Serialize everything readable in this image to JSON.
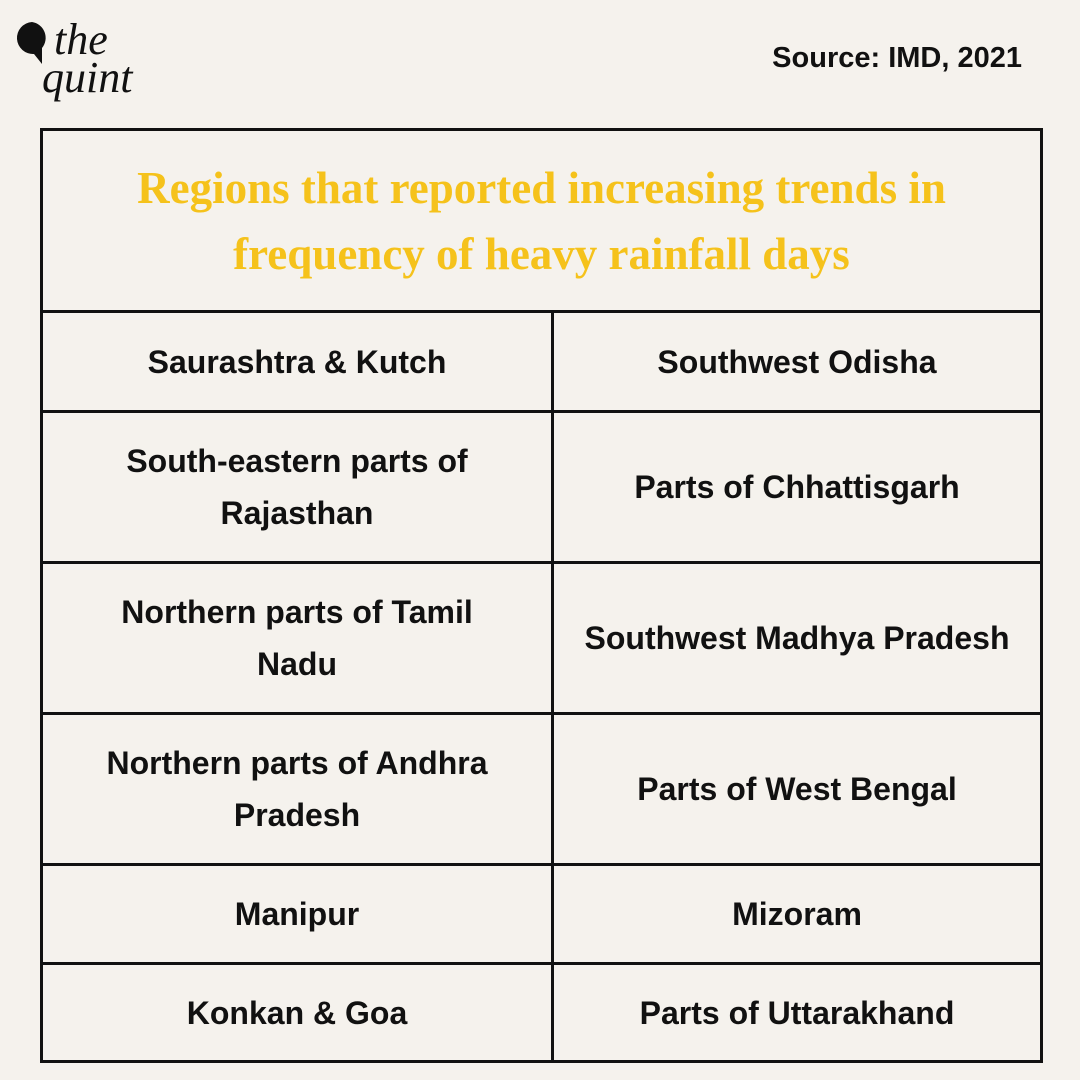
{
  "header": {
    "logo": {
      "line1": "the",
      "line2": "quint"
    },
    "source": "Source: IMD, 2021"
  },
  "table": {
    "title": "Regions that reported increasing trends in frequency of heavy rainfall days",
    "rows": [
      [
        "Saurashtra & Kutch",
        "Southwest Odisha"
      ],
      [
        "South-eastern parts of Rajasthan",
        "Parts of Chhattisgarh"
      ],
      [
        "Northern parts of Tamil Nadu",
        "Southwest Madhya Pradesh"
      ],
      [
        "Northern parts of Andhra Pradesh",
        "Parts of West Bengal"
      ],
      [
        "Manipur",
        "Mizoram"
      ],
      [
        "Konkan & Goa",
        "Parts of Uttarakhand"
      ]
    ]
  }
}
